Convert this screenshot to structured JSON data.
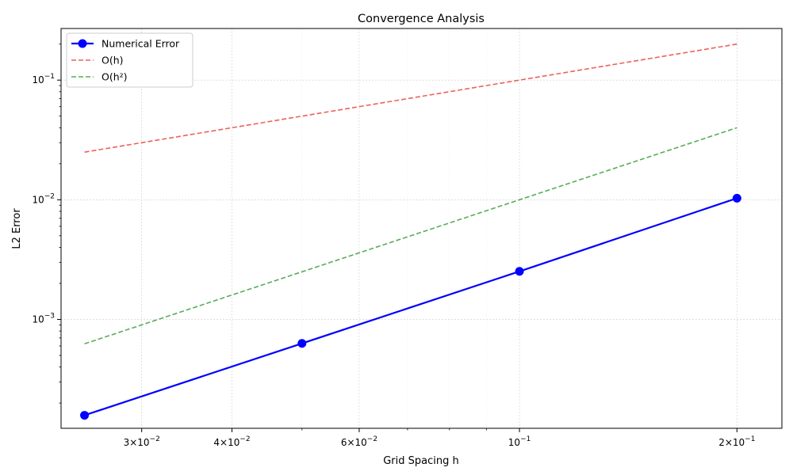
{
  "chart_data": {
    "type": "line",
    "title": "Convergence Analysis",
    "xlabel": "Grid Spacing h",
    "ylabel": "L2 Error",
    "xscale": "log",
    "yscale": "log",
    "xlim": [
      0.0232,
      0.2308
    ],
    "ylim": [
      0.000123,
      0.27
    ],
    "grid": true,
    "legend_position": "top-left",
    "x_ticks": [
      {
        "value": 0.03,
        "mant": "3",
        "exp": "−2"
      },
      {
        "value": 0.04,
        "mant": "4",
        "exp": "−2"
      },
      {
        "value": 0.06,
        "mant": "6",
        "exp": "−2"
      },
      {
        "value": 0.1,
        "mant": "",
        "exp": "−1"
      },
      {
        "value": 0.2,
        "mant": "2",
        "exp": "−1"
      }
    ],
    "y_ticks": [
      {
        "value": 0.001,
        "exp": "−3"
      },
      {
        "value": 0.01,
        "exp": "−2"
      },
      {
        "value": 0.1,
        "exp": "−1"
      }
    ],
    "series": [
      {
        "name": "Numerical Error",
        "color": "#0000ff",
        "style": "solid-markers",
        "x": [
          0.025,
          0.05,
          0.1,
          0.2
        ],
        "y": [
          0.000158,
          0.00063,
          0.00252,
          0.0103
        ]
      },
      {
        "name": "O(h)",
        "color": "#e8463f",
        "style": "dashed",
        "x": [
          0.025,
          0.05,
          0.1,
          0.2
        ],
        "y": [
          0.025,
          0.05,
          0.1,
          0.2
        ]
      },
      {
        "name": "O(h²)",
        "color": "#3a9f3a",
        "style": "dashed",
        "x": [
          0.025,
          0.05,
          0.1,
          0.2
        ],
        "y": [
          0.000625,
          0.0025,
          0.01,
          0.04
        ]
      }
    ]
  }
}
